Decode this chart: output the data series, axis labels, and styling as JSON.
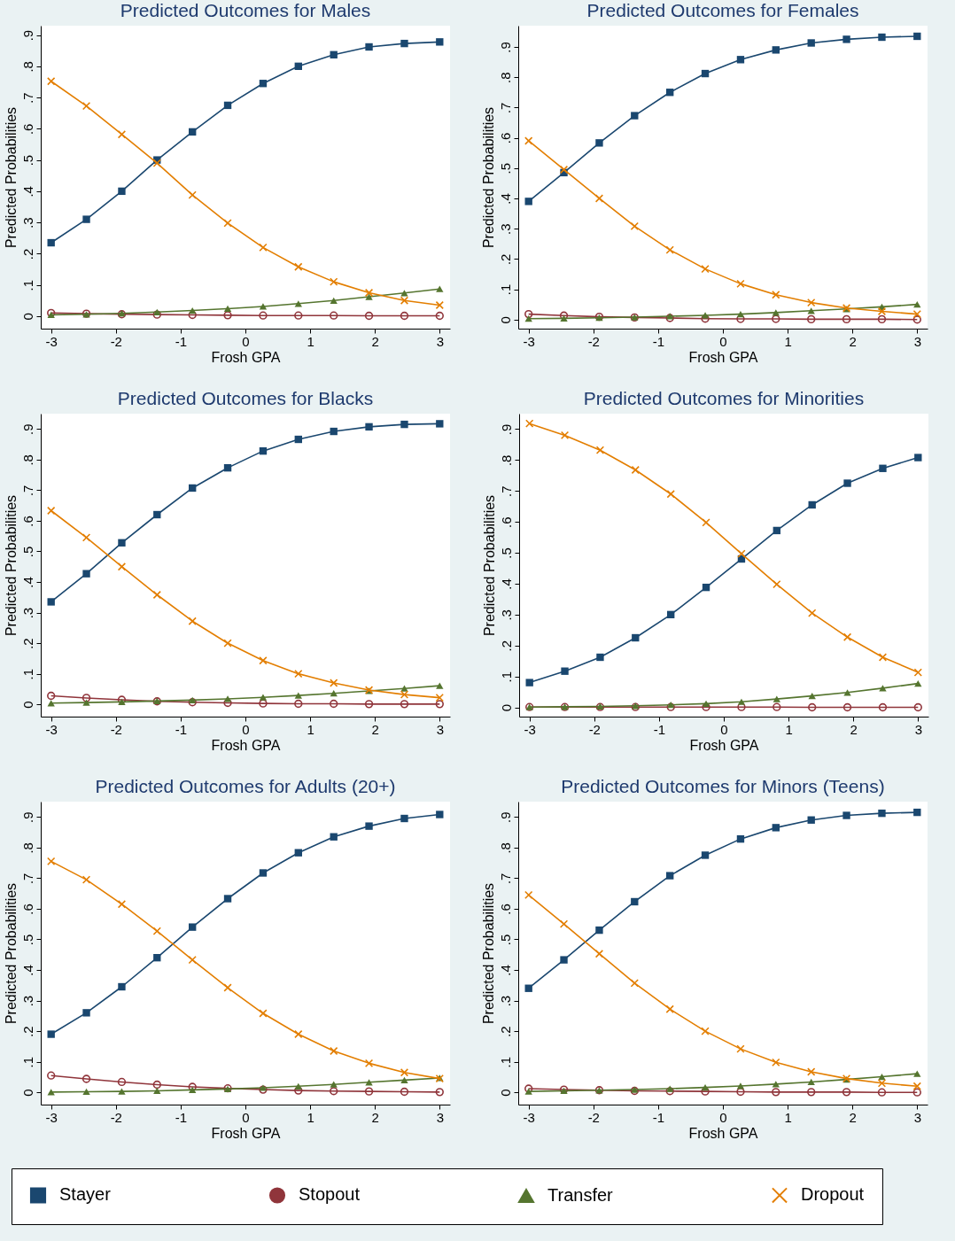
{
  "chart_data": [
    {
      "type": "line",
      "title": "Predicted Outcomes for Males",
      "xlabel": "Frosh GPA",
      "ylabel": "Predicted Probabilities",
      "legend": "bottom",
      "xlim": [
        -3.16,
        3.16
      ],
      "ylim": [
        -0.04,
        0.93
      ],
      "xticks": [
        -3,
        -2,
        -1,
        0,
        1,
        2,
        3
      ],
      "yticks": [
        {
          "value": 0,
          "label": "0"
        },
        {
          "value": 0.1,
          "label": ".1"
        },
        {
          "value": 0.2,
          "label": ".2"
        },
        {
          "value": 0.3,
          "label": ".3"
        },
        {
          "value": 0.4,
          "label": ".4"
        },
        {
          "value": 0.5,
          "label": ".5"
        },
        {
          "value": 0.6,
          "label": ".6"
        },
        {
          "value": 0.7,
          "label": ".7"
        },
        {
          "value": 0.8,
          "label": ".8"
        },
        {
          "value": 0.9,
          "label": ".9"
        }
      ],
      "x": [
        -3,
        -2.455,
        -1.909,
        -1.364,
        -0.818,
        -0.273,
        0.273,
        0.818,
        1.364,
        1.909,
        2.455,
        3
      ],
      "series": [
        {
          "name": "Stayer",
          "color": "#1a476f",
          "marker": "square",
          "values": [
            0.235,
            0.31,
            0.4,
            0.5,
            0.59,
            0.675,
            0.745,
            0.8,
            0.837,
            0.862,
            0.873,
            0.878
          ]
        },
        {
          "name": "Stopout",
          "color": "#90353b",
          "marker": "circle",
          "values": [
            0.01,
            0.008,
            0.006,
            0.005,
            0.004,
            0.003,
            0.002,
            0.002,
            0.002,
            0.001,
            0.001,
            0.001
          ]
        },
        {
          "name": "Transfer",
          "color": "#55752f",
          "marker": "triangle",
          "values": [
            0.004,
            0.006,
            0.009,
            0.013,
            0.018,
            0.024,
            0.031,
            0.04,
            0.05,
            0.062,
            0.074,
            0.087
          ]
        },
        {
          "name": "Dropout",
          "color": "#e37e00",
          "marker": "cross",
          "values": [
            0.752,
            0.673,
            0.582,
            0.49,
            0.388,
            0.298,
            0.22,
            0.158,
            0.11,
            0.075,
            0.05,
            0.035
          ]
        }
      ]
    },
    {
      "type": "line",
      "title": "Predicted Outcomes for Females",
      "xlabel": "Frosh GPA",
      "ylabel": "Predicted Probabilities",
      "xlim": [
        -3.16,
        3.16
      ],
      "ylim": [
        -0.03,
        0.97
      ],
      "xticks": [
        -3,
        -2,
        -1,
        0,
        1,
        2,
        3
      ],
      "yticks": [
        {
          "value": 0,
          "label": "0"
        },
        {
          "value": 0.1,
          "label": ".1"
        },
        {
          "value": 0.2,
          "label": ".2"
        },
        {
          "value": 0.3,
          "label": ".3"
        },
        {
          "value": 0.4,
          "label": ".4"
        },
        {
          "value": 0.5,
          "label": ".5"
        },
        {
          "value": 0.6,
          "label": ".6"
        },
        {
          "value": 0.7,
          "label": ".7"
        },
        {
          "value": 0.8,
          "label": ".8"
        },
        {
          "value": 0.9,
          "label": ".9"
        }
      ],
      "x": [
        -3,
        -2.455,
        -1.909,
        -1.364,
        -0.818,
        -0.273,
        0.273,
        0.818,
        1.364,
        1.909,
        2.455,
        3
      ],
      "series": [
        {
          "color": "#1a476f",
          "marker": "square",
          "values": [
            0.39,
            0.485,
            0.583,
            0.673,
            0.75,
            0.812,
            0.858,
            0.89,
            0.913,
            0.925,
            0.932,
            0.935
          ]
        },
        {
          "color": "#90353b",
          "marker": "circle",
          "values": [
            0.018,
            0.013,
            0.009,
            0.007,
            0.005,
            0.003,
            0.002,
            0.002,
            0.001,
            0.001,
            0.001,
            0
          ]
        },
        {
          "color": "#55752f",
          "marker": "triangle",
          "values": [
            0.003,
            0.004,
            0.006,
            0.008,
            0.011,
            0.014,
            0.018,
            0.023,
            0.029,
            0.035,
            0.042,
            0.05
          ]
        },
        {
          "color": "#e37e00",
          "marker": "cross",
          "values": [
            0.59,
            0.495,
            0.4,
            0.308,
            0.23,
            0.167,
            0.118,
            0.082,
            0.056,
            0.038,
            0.027,
            0.018
          ]
        }
      ]
    },
    {
      "type": "line",
      "title": "Predicted Outcomes for Blacks",
      "xlabel": "Frosh GPA",
      "ylabel": "Predicted Probabilities",
      "xlim": [
        -3.16,
        3.16
      ],
      "ylim": [
        -0.04,
        0.95
      ],
      "xticks": [
        -3,
        -2,
        -1,
        0,
        1,
        2,
        3
      ],
      "yticks": [
        {
          "value": 0,
          "label": "0"
        },
        {
          "value": 0.1,
          "label": ".1"
        },
        {
          "value": 0.2,
          "label": ".2"
        },
        {
          "value": 0.3,
          "label": ".3"
        },
        {
          "value": 0.4,
          "label": ".4"
        },
        {
          "value": 0.5,
          "label": ".5"
        },
        {
          "value": 0.6,
          "label": ".6"
        },
        {
          "value": 0.7,
          "label": ".7"
        },
        {
          "value": 0.8,
          "label": ".8"
        },
        {
          "value": 0.9,
          "label": ".9"
        }
      ],
      "x": [
        -3,
        -2.455,
        -1.909,
        -1.364,
        -0.818,
        -0.273,
        0.273,
        0.818,
        1.364,
        1.909,
        2.455,
        3
      ],
      "series": [
        {
          "color": "#1a476f",
          "marker": "square",
          "values": [
            0.335,
            0.427,
            0.528,
            0.62,
            0.707,
            0.773,
            0.828,
            0.866,
            0.892,
            0.907,
            0.915,
            0.917
          ]
        },
        {
          "color": "#90353b",
          "marker": "circle",
          "values": [
            0.028,
            0.021,
            0.015,
            0.01,
            0.007,
            0.005,
            0.003,
            0.002,
            0.002,
            0.001,
            0.001,
            0.001
          ]
        },
        {
          "color": "#55752f",
          "marker": "triangle",
          "values": [
            0.004,
            0.006,
            0.008,
            0.011,
            0.014,
            0.018,
            0.023,
            0.029,
            0.036,
            0.044,
            0.052,
            0.061
          ]
        },
        {
          "color": "#e37e00",
          "marker": "cross",
          "values": [
            0.633,
            0.545,
            0.45,
            0.358,
            0.272,
            0.2,
            0.143,
            0.1,
            0.07,
            0.047,
            0.032,
            0.022
          ]
        }
      ]
    },
    {
      "type": "line",
      "title": "Predicted Outcomes for Minorities",
      "xlabel": "Frosh GPA",
      "ylabel": "Predicted Probabilities",
      "xlim": [
        -3.16,
        3.16
      ],
      "ylim": [
        -0.03,
        0.95
      ],
      "xticks": [
        -3,
        -2,
        -1,
        0,
        1,
        2,
        3
      ],
      "yticks": [
        {
          "value": 0,
          "label": "0"
        },
        {
          "value": 0.1,
          "label": ".1"
        },
        {
          "value": 0.2,
          "label": ".2"
        },
        {
          "value": 0.3,
          "label": ".3"
        },
        {
          "value": 0.4,
          "label": ".4"
        },
        {
          "value": 0.5,
          "label": ".5"
        },
        {
          "value": 0.6,
          "label": ".6"
        },
        {
          "value": 0.7,
          "label": ".7"
        },
        {
          "value": 0.8,
          "label": ".8"
        },
        {
          "value": 0.9,
          "label": ".9"
        }
      ],
      "x": [
        -3,
        -2.455,
        -1.909,
        -1.364,
        -0.818,
        -0.273,
        0.273,
        0.818,
        1.364,
        1.909,
        2.455,
        3
      ],
      "series": [
        {
          "color": "#1a476f",
          "marker": "square",
          "values": [
            0.08,
            0.117,
            0.162,
            0.225,
            0.3,
            0.388,
            0.48,
            0.572,
            0.655,
            0.725,
            0.773,
            0.808
          ]
        },
        {
          "color": "#90353b",
          "marker": "circle",
          "values": [
            0.001,
            0.001,
            0.001,
            0.001,
            0.001,
            0.001,
            0.001,
            0.001,
            0,
            0,
            0,
            0
          ]
        },
        {
          "color": "#55752f",
          "marker": "triangle",
          "values": [
            0.001,
            0.002,
            0.003,
            0.005,
            0.008,
            0.012,
            0.018,
            0.027,
            0.037,
            0.048,
            0.062,
            0.077
          ]
        },
        {
          "color": "#e37e00",
          "marker": "cross",
          "values": [
            0.918,
            0.88,
            0.832,
            0.768,
            0.69,
            0.598,
            0.497,
            0.398,
            0.305,
            0.227,
            0.162,
            0.113
          ]
        }
      ]
    },
    {
      "type": "line",
      "title": "Predicted Outcomes for Adults (20+)",
      "xlabel": "Frosh GPA",
      "ylabel": "Predicted Probabilities",
      "xlim": [
        -3.16,
        3.16
      ],
      "ylim": [
        -0.04,
        0.95
      ],
      "xticks": [
        -3,
        -2,
        -1,
        0,
        1,
        2,
        3
      ],
      "yticks": [
        {
          "value": 0,
          "label": "0"
        },
        {
          "value": 0.1,
          "label": ".1"
        },
        {
          "value": 0.2,
          "label": ".2"
        },
        {
          "value": 0.3,
          "label": ".3"
        },
        {
          "value": 0.4,
          "label": ".4"
        },
        {
          "value": 0.5,
          "label": ".5"
        },
        {
          "value": 0.6,
          "label": ".6"
        },
        {
          "value": 0.7,
          "label": ".7"
        },
        {
          "value": 0.8,
          "label": ".8"
        },
        {
          "value": 0.9,
          "label": ".9"
        }
      ],
      "x": [
        -3,
        -2.455,
        -1.909,
        -1.364,
        -0.818,
        -0.273,
        0.273,
        0.818,
        1.364,
        1.909,
        2.455,
        3
      ],
      "series": [
        {
          "color": "#1a476f",
          "marker": "square",
          "values": [
            0.19,
            0.26,
            0.345,
            0.44,
            0.54,
            0.633,
            0.717,
            0.783,
            0.835,
            0.87,
            0.895,
            0.908
          ]
        },
        {
          "color": "#90353b",
          "marker": "circle",
          "values": [
            0.055,
            0.044,
            0.034,
            0.025,
            0.018,
            0.013,
            0.009,
            0.006,
            0.004,
            0.003,
            0.002,
            0.001
          ]
        },
        {
          "color": "#55752f",
          "marker": "triangle",
          "values": [
            0.001,
            0.002,
            0.003,
            0.005,
            0.008,
            0.011,
            0.015,
            0.02,
            0.026,
            0.033,
            0.04,
            0.047
          ]
        },
        {
          "color": "#e37e00",
          "marker": "cross",
          "values": [
            0.755,
            0.695,
            0.615,
            0.527,
            0.433,
            0.342,
            0.258,
            0.19,
            0.135,
            0.095,
            0.065,
            0.045
          ]
        }
      ]
    },
    {
      "type": "line",
      "title": "Predicted Outcomes for Minors (Teens)",
      "xlabel": "Frosh GPA",
      "ylabel": "Predicted Probabilities",
      "xlim": [
        -3.16,
        3.16
      ],
      "ylim": [
        -0.04,
        0.95
      ],
      "xticks": [
        -3,
        -2,
        -1,
        0,
        1,
        2,
        3
      ],
      "yticks": [
        {
          "value": 0,
          "label": "0"
        },
        {
          "value": 0.1,
          "label": ".1"
        },
        {
          "value": 0.2,
          "label": ".2"
        },
        {
          "value": 0.3,
          "label": ".3"
        },
        {
          "value": 0.4,
          "label": ".4"
        },
        {
          "value": 0.5,
          "label": ".5"
        },
        {
          "value": 0.6,
          "label": ".6"
        },
        {
          "value": 0.7,
          "label": ".7"
        },
        {
          "value": 0.8,
          "label": ".8"
        },
        {
          "value": 0.9,
          "label": ".9"
        }
      ],
      "x": [
        -3,
        -2.455,
        -1.909,
        -1.364,
        -0.818,
        -0.273,
        0.273,
        0.818,
        1.364,
        1.909,
        2.455,
        3
      ],
      "series": [
        {
          "color": "#1a476f",
          "marker": "square",
          "values": [
            0.34,
            0.433,
            0.53,
            0.623,
            0.708,
            0.775,
            0.828,
            0.865,
            0.89,
            0.905,
            0.912,
            0.915
          ]
        },
        {
          "color": "#90353b",
          "marker": "circle",
          "values": [
            0.012,
            0.009,
            0.007,
            0.005,
            0.004,
            0.003,
            0.002,
            0.001,
            0.001,
            0.001,
            0,
            0
          ]
        },
        {
          "color": "#55752f",
          "marker": "triangle",
          "values": [
            0.003,
            0.005,
            0.007,
            0.009,
            0.012,
            0.016,
            0.021,
            0.027,
            0.034,
            0.042,
            0.051,
            0.061
          ]
        },
        {
          "color": "#e37e00",
          "marker": "cross",
          "values": [
            0.645,
            0.55,
            0.453,
            0.357,
            0.272,
            0.2,
            0.142,
            0.098,
            0.067,
            0.045,
            0.03,
            0.02
          ]
        }
      ]
    }
  ]
}
